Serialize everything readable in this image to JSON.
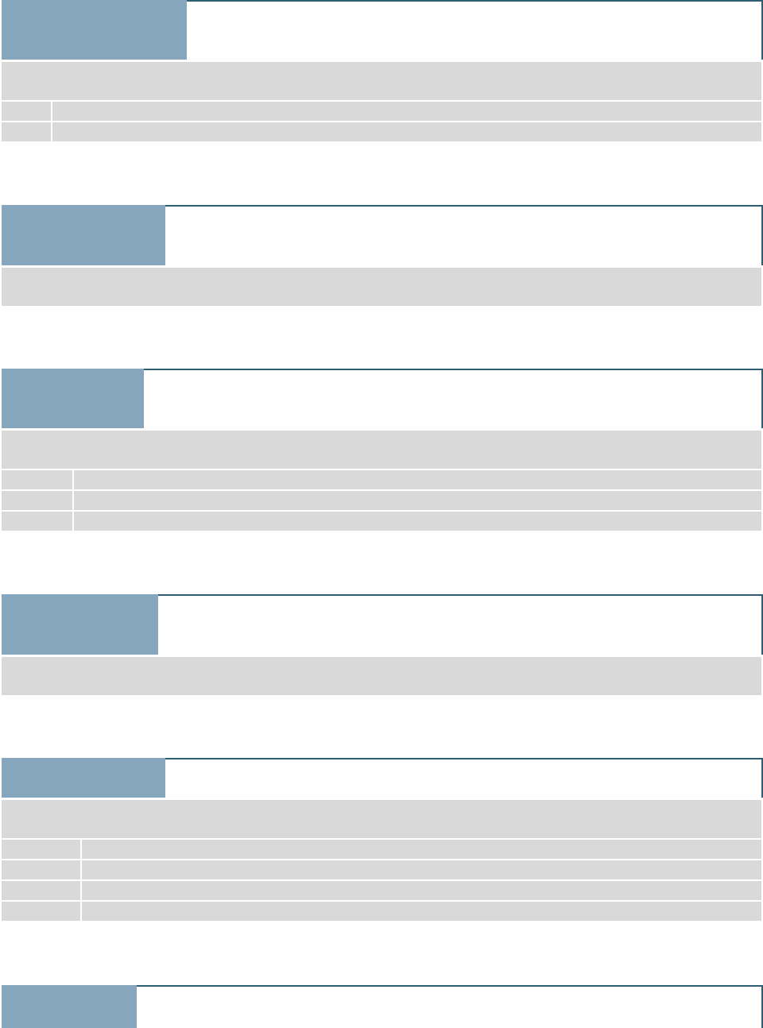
{
  "sections": [
    {
      "title": "",
      "description": "",
      "rows": [
        {
          "key": "",
          "value": ""
        },
        {
          "key": "",
          "value": ""
        }
      ]
    },
    {
      "title": "",
      "description": "",
      "rows": []
    },
    {
      "title": "",
      "description": "",
      "rows": [
        {
          "key": "",
          "value": ""
        },
        {
          "key": "",
          "value": ""
        },
        {
          "key": "",
          "value": ""
        }
      ]
    },
    {
      "title": "",
      "description": "",
      "rows": []
    },
    {
      "title": "",
      "description": "",
      "rows": [
        {
          "key": "",
          "value": ""
        },
        {
          "key": "",
          "value": ""
        },
        {
          "key": "",
          "value": ""
        },
        {
          "key": "",
          "value": ""
        }
      ]
    },
    {
      "title": "",
      "description": "",
      "rows": []
    }
  ],
  "colors": {
    "tab": "#85a6bc",
    "frame_border": "#2f5d72",
    "panel": "#d9d9d9",
    "background": "#ffffff"
  }
}
